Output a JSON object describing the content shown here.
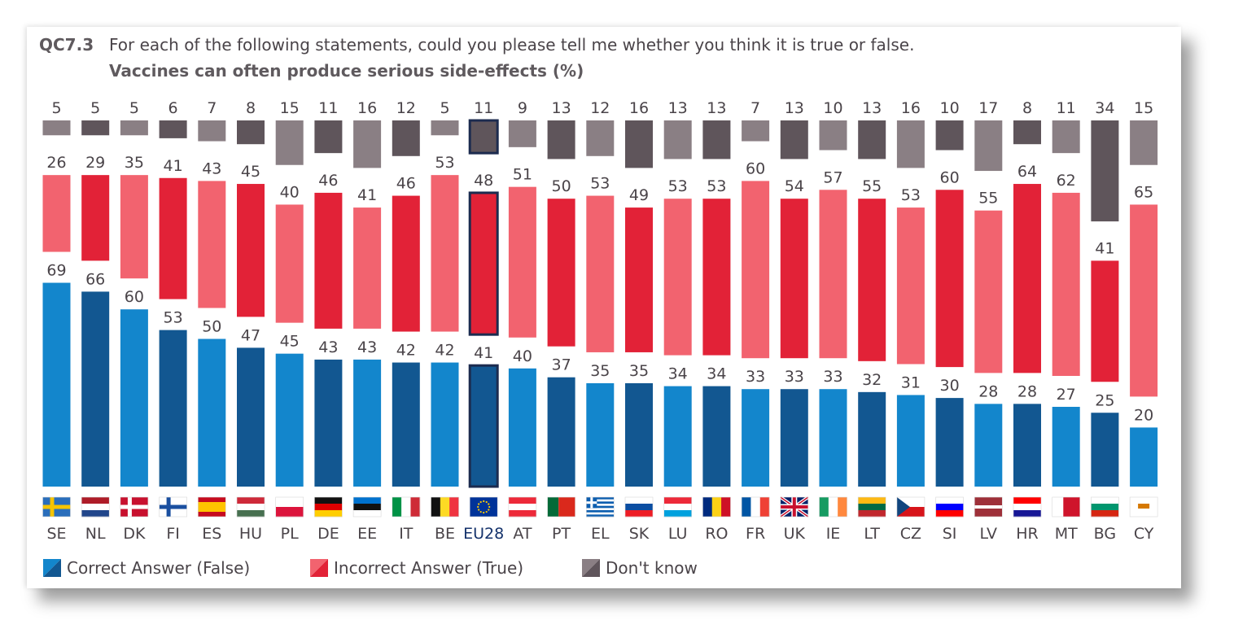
{
  "title": {
    "code": "QC7.3",
    "question": "For each of the following statements, could you please tell me whether you think it is true or false.",
    "statement": "Vaccines can often produce serious side-effects (%)"
  },
  "legend": {
    "correct": "Correct Answer (False)",
    "incorrect": "Incorrect Answer (True)",
    "dont_know": "Don't know"
  },
  "colors": {
    "correct_light": "#1386cc",
    "correct_dark": "#125791",
    "incorrect_light": "#f2636f",
    "incorrect_dark": "#e22237",
    "dont_know_light": "#8a7f84",
    "dont_know_dark": "#5f555b",
    "label_text": "#4a4449",
    "highlight_border": "#1c2b4f",
    "eu_label": "#14326b"
  },
  "chart_data": {
    "type": "bar",
    "stacking": "segments shown as separate floating blocks per country",
    "categories": [
      "SE",
      "NL",
      "DK",
      "FI",
      "ES",
      "HU",
      "PL",
      "DE",
      "EE",
      "IT",
      "BE",
      "EU28",
      "AT",
      "PT",
      "EL",
      "SK",
      "LU",
      "RO",
      "FR",
      "UK",
      "IE",
      "LT",
      "CZ",
      "SI",
      "LV",
      "HR",
      "MT",
      "BG",
      "CY"
    ],
    "highlight": "EU28",
    "series": [
      {
        "name": "Correct Answer (False)",
        "values": [
          69,
          66,
          60,
          53,
          50,
          47,
          45,
          43,
          43,
          42,
          42,
          41,
          40,
          37,
          35,
          35,
          34,
          34,
          33,
          33,
          33,
          32,
          31,
          30,
          28,
          28,
          27,
          25,
          20
        ]
      },
      {
        "name": "Incorrect Answer (True)",
        "values": [
          26,
          29,
          35,
          41,
          43,
          45,
          40,
          46,
          41,
          46,
          53,
          48,
          51,
          50,
          53,
          49,
          53,
          53,
          60,
          54,
          57,
          55,
          53,
          60,
          55,
          64,
          62,
          41,
          65
        ]
      },
      {
        "name": "Don't know",
        "values": [
          5,
          5,
          5,
          6,
          7,
          8,
          15,
          11,
          16,
          12,
          5,
          11,
          9,
          13,
          12,
          16,
          13,
          13,
          7,
          13,
          10,
          13,
          16,
          10,
          17,
          8,
          11,
          34,
          15
        ]
      }
    ],
    "ylim": [
      0,
      100
    ],
    "legend_position": "bottom-left",
    "grid": false
  }
}
